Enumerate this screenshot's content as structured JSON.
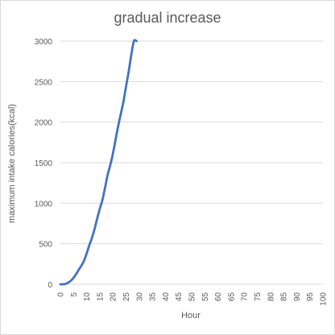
{
  "chart_data": {
    "type": "line",
    "title": "gradual increase",
    "xlabel": "Hour",
    "ylabel": "maximum intake calories(kcal)",
    "xlim": [
      0,
      100
    ],
    "ylim": [
      0,
      3000
    ],
    "x_ticks": [
      "0",
      "5",
      "10",
      "15",
      "20",
      "25",
      "30",
      "35",
      "40",
      "45",
      "50",
      "55",
      "60",
      "65",
      "70",
      "75",
      "80",
      "85",
      "90",
      "95",
      "100"
    ],
    "y_ticks": [
      "0",
      "500",
      "1000",
      "1500",
      "2000",
      "2500",
      "3000"
    ],
    "grid": true,
    "legend": "none",
    "series": [
      {
        "color": "#4472c4",
        "x": [
          0,
          1,
          2,
          3,
          4,
          5,
          6,
          7,
          8,
          9,
          10,
          11,
          12,
          13,
          14,
          15,
          16,
          17,
          18,
          19,
          20,
          21,
          22,
          23,
          24,
          25,
          26,
          27,
          28,
          29
        ],
        "values": [
          0,
          0,
          5,
          20,
          45,
          80,
          125,
          180,
          230,
          290,
          380,
          480,
          570,
          680,
          810,
          930,
          1040,
          1190,
          1350,
          1470,
          1610,
          1780,
          1950,
          2100,
          2250,
          2440,
          2620,
          2830,
          3000,
          3000
        ]
      }
    ]
  }
}
